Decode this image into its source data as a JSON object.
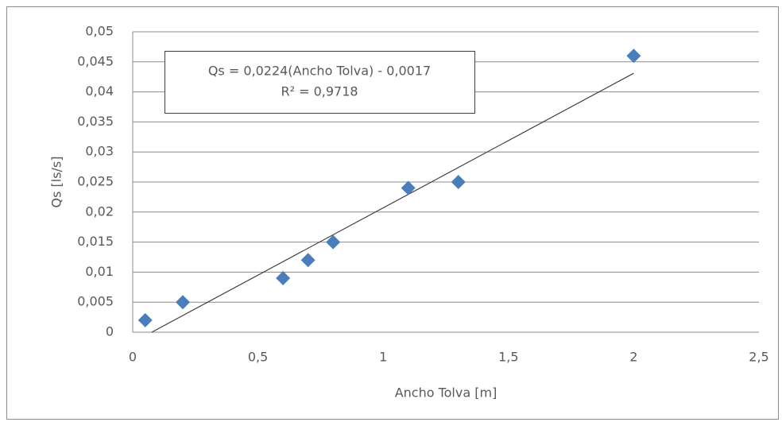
{
  "chart_data": {
    "type": "scatter",
    "x_label": "Ancho Tolva [m]",
    "y_label": "Qs [ls/s]",
    "x": [
      0.05,
      0.2,
      0.6,
      0.7,
      0.8,
      1.1,
      1.3,
      2.0
    ],
    "values": [
      0.002,
      0.005,
      0.009,
      0.012,
      0.015,
      0.024,
      0.025,
      0.046
    ],
    "color": "#4a7ebb",
    "xlim": [
      0,
      2.5
    ],
    "ylim": [
      0,
      0.05
    ],
    "xticks": [
      0,
      {
        "value": 0.5,
        "label": "0,5"
      },
      1,
      {
        "value": 1.5,
        "label": "1,5"
      },
      2,
      {
        "value": 2.5,
        "label": "2,5"
      }
    ],
    "yticks": [
      0,
      {
        "value": 0.005,
        "label": "0,005"
      },
      {
        "value": 0.01,
        "label": "0,01"
      },
      {
        "value": 0.015,
        "label": "0,015"
      },
      {
        "value": 0.02,
        "label": "0,02"
      },
      {
        "value": 0.025,
        "label": "0,025"
      },
      {
        "value": 0.03,
        "label": "0,03"
      },
      {
        "value": 0.035,
        "label": "0,035"
      },
      {
        "value": 0.04,
        "label": "0,04"
      },
      {
        "value": 0.045,
        "label": "0,045"
      },
      {
        "value": 0.05,
        "label": "0,05"
      }
    ],
    "grid": true,
    "trendline": {
      "slope": 0.0224,
      "intercept": -0.0017,
      "color": "#404040"
    },
    "annotation": [
      "Qs = 0,0224(Ancho Tolva) - 0,0017",
      "R² = 0,9718"
    ]
  }
}
